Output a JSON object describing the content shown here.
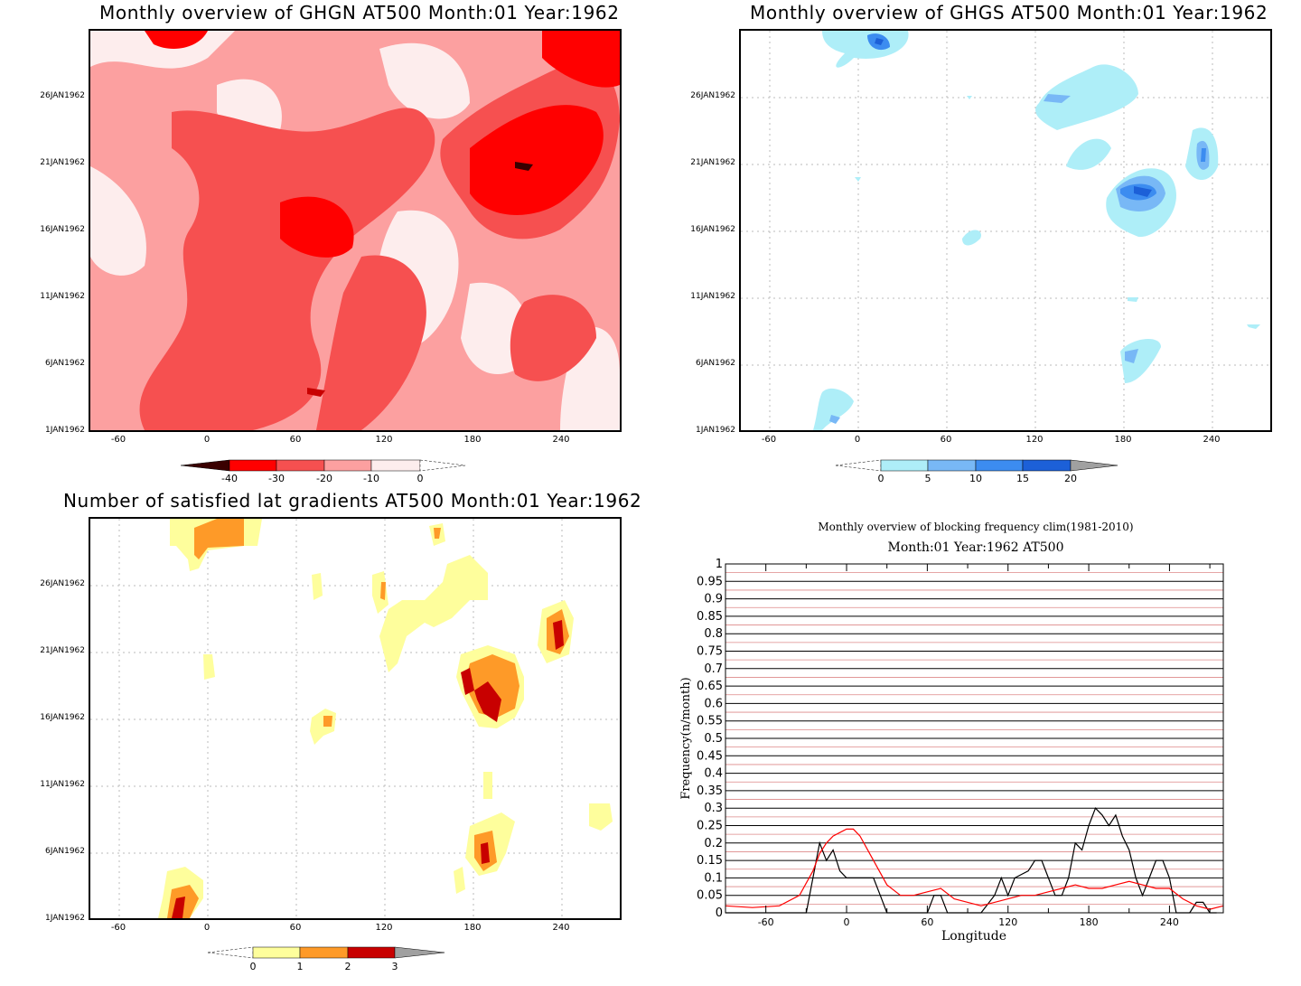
{
  "chart_data": [
    {
      "type": "heatmap",
      "title": "Monthly overview of GHGN AT500 Month:01 Year:1962",
      "x_ticks": [
        "-60",
        "0",
        "60",
        "120",
        "180",
        "240"
      ],
      "x_tick_values": [
        -60,
        0,
        60,
        120,
        180,
        240
      ],
      "xlim": [
        -80,
        280
      ],
      "y_ticks": [
        "26JAN1962",
        "21JAN1962",
        "16JAN1962",
        "11JAN1962",
        "6JAN1962",
        "1JAN1962"
      ],
      "y_tick_values": [
        26,
        21,
        16,
        11,
        6,
        1
      ],
      "ylim": [
        1,
        31
      ],
      "legend_labels": [
        "-40",
        "-30",
        "-20",
        "-10",
        "0"
      ],
      "legend_colors": [
        "#3a0000",
        "#ff0000",
        "#f65050",
        "#fca0a0",
        "#fdeded"
      ],
      "grid": true,
      "colorbar": "bottom"
    },
    {
      "type": "heatmap",
      "title": "Monthly overview of GHGS AT500 Month:01 Year:1962",
      "x_ticks": [
        "-60",
        "0",
        "60",
        "120",
        "180",
        "240"
      ],
      "x_tick_values": [
        -60,
        0,
        60,
        120,
        180,
        240
      ],
      "xlim": [
        -80,
        280
      ],
      "y_ticks": [
        "26JAN1962",
        "21JAN1962",
        "16JAN1962",
        "11JAN1962",
        "6JAN1962",
        "1JAN1962"
      ],
      "y_tick_values": [
        26,
        21,
        16,
        11,
        6,
        1
      ],
      "ylim": [
        1,
        31
      ],
      "legend_labels": [
        "0",
        "5",
        "10",
        "15",
        "20"
      ],
      "legend_colors": [
        "#aeeef8",
        "#78b8f6",
        "#3c8cf0",
        "#1c60d8",
        "#a0a0a0"
      ],
      "grid": true,
      "colorbar": "bottom"
    },
    {
      "type": "heatmap",
      "title": "Number of satisfied lat gradients AT500 Month:01 Year:1962",
      "x_ticks": [
        "-60",
        "0",
        "60",
        "120",
        "180",
        "240"
      ],
      "x_tick_values": [
        -60,
        0,
        60,
        120,
        180,
        240
      ],
      "xlim": [
        -80,
        280
      ],
      "y_ticks": [
        "26JAN1962",
        "21JAN1962",
        "16JAN1962",
        "11JAN1962",
        "6JAN1962",
        "1JAN1962"
      ],
      "y_tick_values": [
        26,
        21,
        16,
        11,
        6,
        1
      ],
      "ylim": [
        1,
        31
      ],
      "legend_labels": [
        "0",
        "1",
        "2",
        "3"
      ],
      "legend_colors": [
        "#fefe9c",
        "#fe9a28",
        "#c80000",
        "#a0a0a0"
      ],
      "grid": true,
      "colorbar": "bottom"
    },
    {
      "type": "line",
      "title": "Monthly overview of blocking frequency clim(1981-2010)",
      "subtitle": "Month:01 Year:1962  AT500",
      "xlabel": "Longitude",
      "ylabel": "Frequency(n/month)",
      "x_ticks": [
        "-60",
        "0",
        "60",
        "120",
        "180",
        "240"
      ],
      "x_tick_values": [
        -60,
        0,
        60,
        120,
        180,
        240
      ],
      "xlim": [
        -90,
        280
      ],
      "ylim": [
        0,
        1
      ],
      "y_ticks": [
        "0",
        "0.05",
        "0.1",
        "0.15",
        "0.2",
        "0.25",
        "0.3",
        "0.35",
        "0.4",
        "0.45",
        "0.5",
        "0.55",
        "0.6",
        "0.65",
        "0.7",
        "0.75",
        "0.8",
        "0.85",
        "0.9",
        "0.95",
        "1"
      ],
      "grid": true,
      "series": [
        {
          "color": "#000000",
          "x": [
            -90,
            -30,
            -25,
            -20,
            -15,
            -10,
            -5,
            0,
            5,
            10,
            20,
            25,
            30,
            35,
            40,
            45,
            60,
            65,
            70,
            75,
            80,
            85,
            90,
            100,
            110,
            115,
            120,
            125,
            135,
            140,
            145,
            150,
            155,
            160,
            165,
            170,
            175,
            180,
            185,
            190,
            195,
            200,
            205,
            210,
            215,
            220,
            225,
            230,
            235,
            240,
            245,
            250,
            255,
            260,
            265,
            270,
            275
          ],
          "y": [
            0,
            0,
            0.1,
            0.2,
            0.15,
            0.18,
            0.12,
            0.1,
            0.1,
            0.1,
            0.1,
            0.05,
            0,
            0,
            0,
            0,
            0,
            0.05,
            0.05,
            0,
            0,
            0,
            0,
            0,
            0.05,
            0.1,
            0.05,
            0.1,
            0.12,
            0.15,
            0.15,
            0.1,
            0.05,
            0.05,
            0.1,
            0.2,
            0.18,
            0.25,
            0.3,
            0.28,
            0.25,
            0.28,
            0.22,
            0.18,
            0.1,
            0.05,
            0.1,
            0.15,
            0.15,
            0.1,
            0,
            0,
            0,
            0.03,
            0.03,
            0,
            0
          ]
        },
        {
          "color": "#ff0000",
          "x": [
            -90,
            -70,
            -50,
            -35,
            -25,
            -20,
            -15,
            -10,
            -5,
            0,
            5,
            10,
            20,
            30,
            40,
            50,
            60,
            70,
            80,
            90,
            100,
            110,
            120,
            130,
            140,
            150,
            160,
            170,
            180,
            190,
            200,
            210,
            220,
            230,
            240,
            250,
            260,
            270,
            280
          ],
          "y": [
            0.02,
            0.015,
            0.02,
            0.05,
            0.12,
            0.17,
            0.2,
            0.22,
            0.23,
            0.24,
            0.24,
            0.22,
            0.15,
            0.08,
            0.05,
            0.05,
            0.06,
            0.07,
            0.04,
            0.03,
            0.02,
            0.03,
            0.04,
            0.05,
            0.05,
            0.06,
            0.07,
            0.08,
            0.07,
            0.07,
            0.08,
            0.09,
            0.08,
            0.07,
            0.07,
            0.04,
            0.02,
            0.01,
            0.02
          ]
        }
      ]
    }
  ]
}
